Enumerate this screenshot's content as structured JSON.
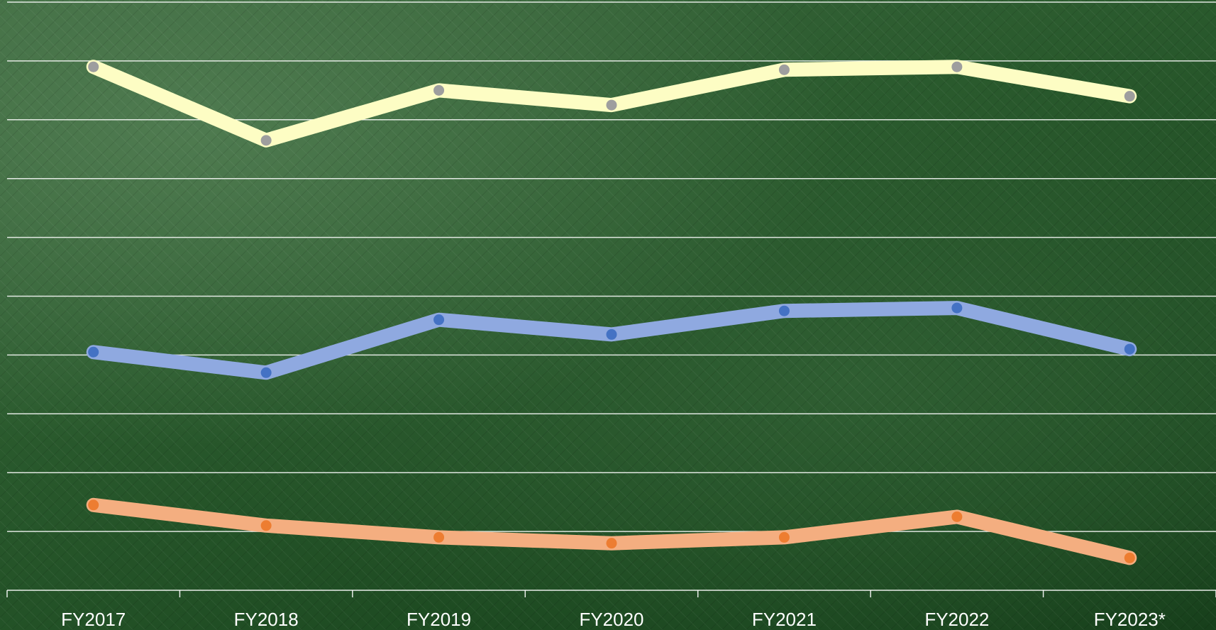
{
  "chart_data": {
    "type": "line",
    "categories": [
      "FY2017",
      "FY2018",
      "FY2019",
      "FY2020",
      "FY2021",
      "FY2022",
      "FY2023*"
    ],
    "ylim": [
      0,
      10
    ],
    "grid": true,
    "series": [
      {
        "values": [
          8.9,
          7.65,
          8.5,
          8.25,
          8.85,
          8.9,
          8.4
        ],
        "color": "#fdfdc4",
        "marker_color": "#9e9e9e"
      },
      {
        "values": [
          4.05,
          3.7,
          4.6,
          4.35,
          4.75,
          4.8,
          4.1
        ],
        "color": "#8fa9e0",
        "marker_color": "#4472c4"
      },
      {
        "values": [
          1.45,
          1.1,
          0.9,
          0.8,
          0.9,
          1.25,
          0.55
        ],
        "color": "#f4ae80",
        "marker_color": "#ed7d31"
      }
    ]
  }
}
